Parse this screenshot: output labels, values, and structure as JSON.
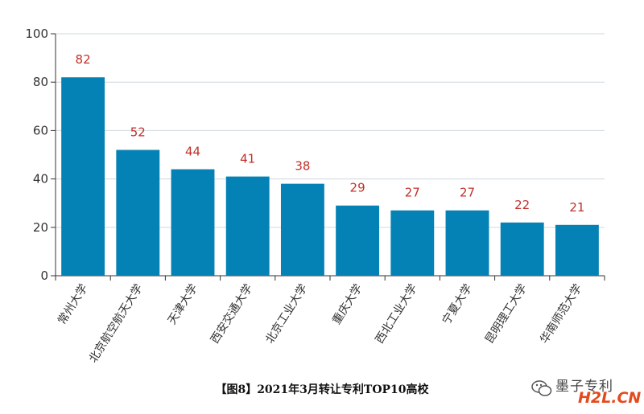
{
  "chart_data": {
    "type": "bar",
    "categories": [
      "常州大学",
      "北京航空航天大学",
      "天津大学",
      "西安交通大学",
      "北京工业大学",
      "重庆大学",
      "西北工业大学",
      "宁夏大学",
      "昆明理工大学",
      "华南师范大学"
    ],
    "values": [
      82,
      52,
      44,
      41,
      38,
      29,
      27,
      27,
      22,
      21
    ],
    "ylim": [
      0,
      100
    ],
    "yticks": [
      "0",
      "20",
      "40",
      "60",
      "80",
      "100"
    ],
    "grid": true,
    "bar_color": "#0481b5",
    "label_color": "#c0302a",
    "title": "【图8】2021年3月转让专利TOP10高校"
  },
  "watermark": {
    "text": "墨子专利",
    "brand": "H2L.CN"
  }
}
